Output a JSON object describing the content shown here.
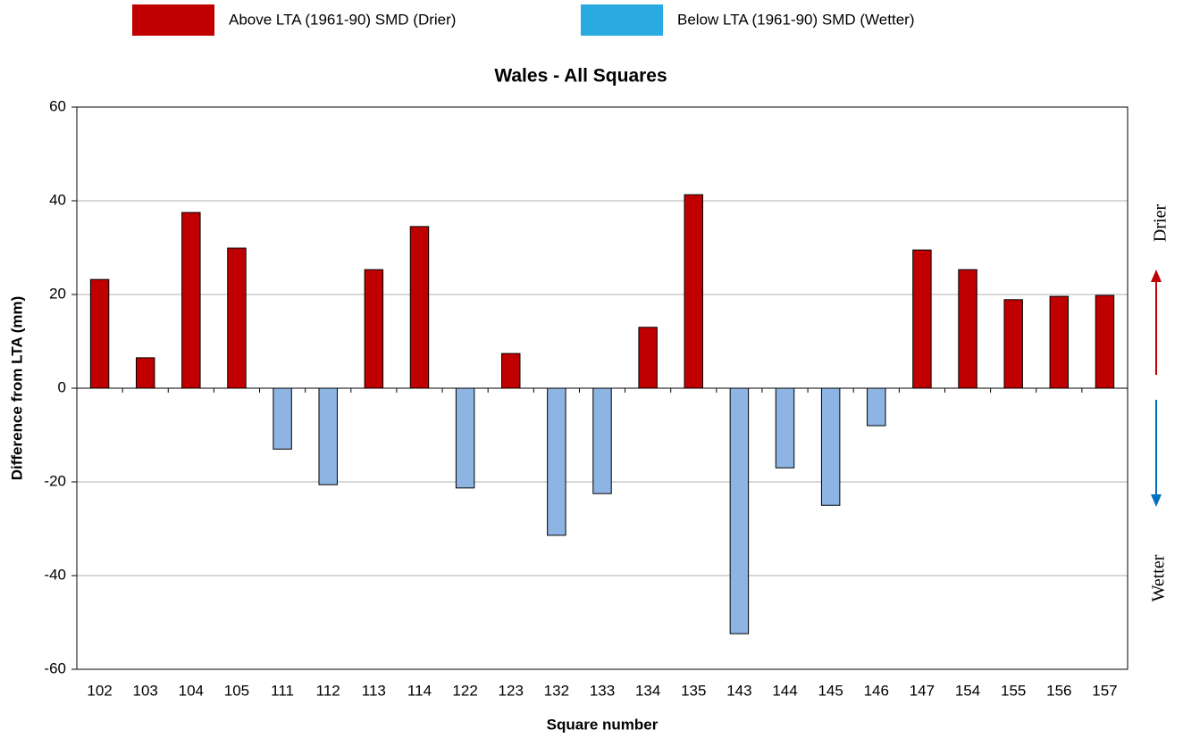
{
  "chart_data": {
    "type": "bar",
    "title": "Wales - All Squares",
    "x_label": "Square number",
    "y_label": "Difference from LTA (mm)",
    "annotations": [
      "Drier",
      "Wetter"
    ],
    "categories": [
      "102",
      "103",
      "104",
      "105",
      "111",
      "112",
      "113",
      "114",
      "122",
      "123",
      "132",
      "133",
      "134",
      "135",
      "143",
      "144",
      "145",
      "146",
      "147",
      "154",
      "155",
      "156",
      "157"
    ],
    "series": [
      {
        "name": "Above LTA (1961-90)  SMD (Drier)",
        "color": "#c00000",
        "legend_color": "#c00000",
        "values": [
          23.2,
          6.5,
          37.5,
          29.9,
          null,
          null,
          25.3,
          34.5,
          null,
          7.4,
          null,
          null,
          13,
          41.3,
          null,
          null,
          null,
          null,
          29.5,
          25.3,
          18.9,
          19.6,
          19.8
        ]
      },
      {
        "name": "Below LTA (1961-90) SMD (Wetter)",
        "color": "#8db4e2",
        "legend_color": "#29abe2",
        "values": [
          null,
          null,
          null,
          null,
          -13,
          -20.6,
          null,
          null,
          -21.3,
          null,
          -31.4,
          -22.5,
          null,
          null,
          -52.4,
          -17,
          -25,
          -8,
          null,
          null,
          null,
          null,
          null
        ]
      }
    ],
    "ylim": [
      -60,
      60
    ],
    "yticks": [
      -60,
      -40,
      -20,
      0,
      20,
      40,
      60
    ],
    "grid": true
  }
}
